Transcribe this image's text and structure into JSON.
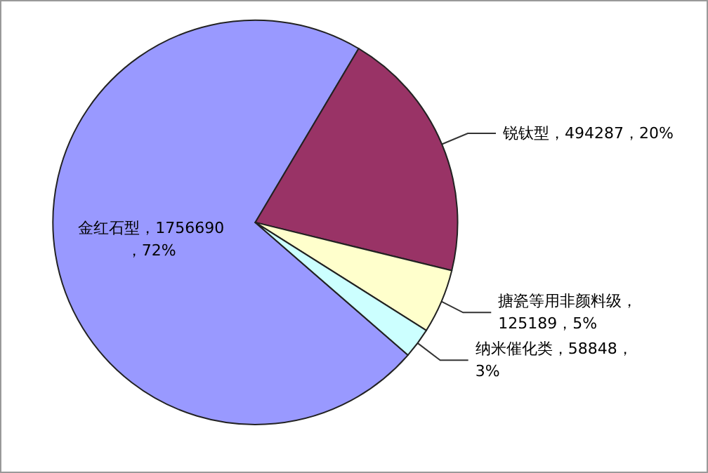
{
  "chart_data": {
    "type": "pie",
    "categories": [
      "金红石型",
      "锐钛型",
      "搪瓷等用非颜料级",
      "纳米催化类"
    ],
    "values": [
      1756690,
      494287,
      125189,
      58848
    ],
    "colors": [
      "#9999ff",
      "#993366",
      "#ffffcc",
      "#ccffff"
    ],
    "value_labels": [
      "，1756690，72%",
      "，494287，20%",
      "，125189，5%",
      "，58848，3%"
    ],
    "legend": false
  }
}
